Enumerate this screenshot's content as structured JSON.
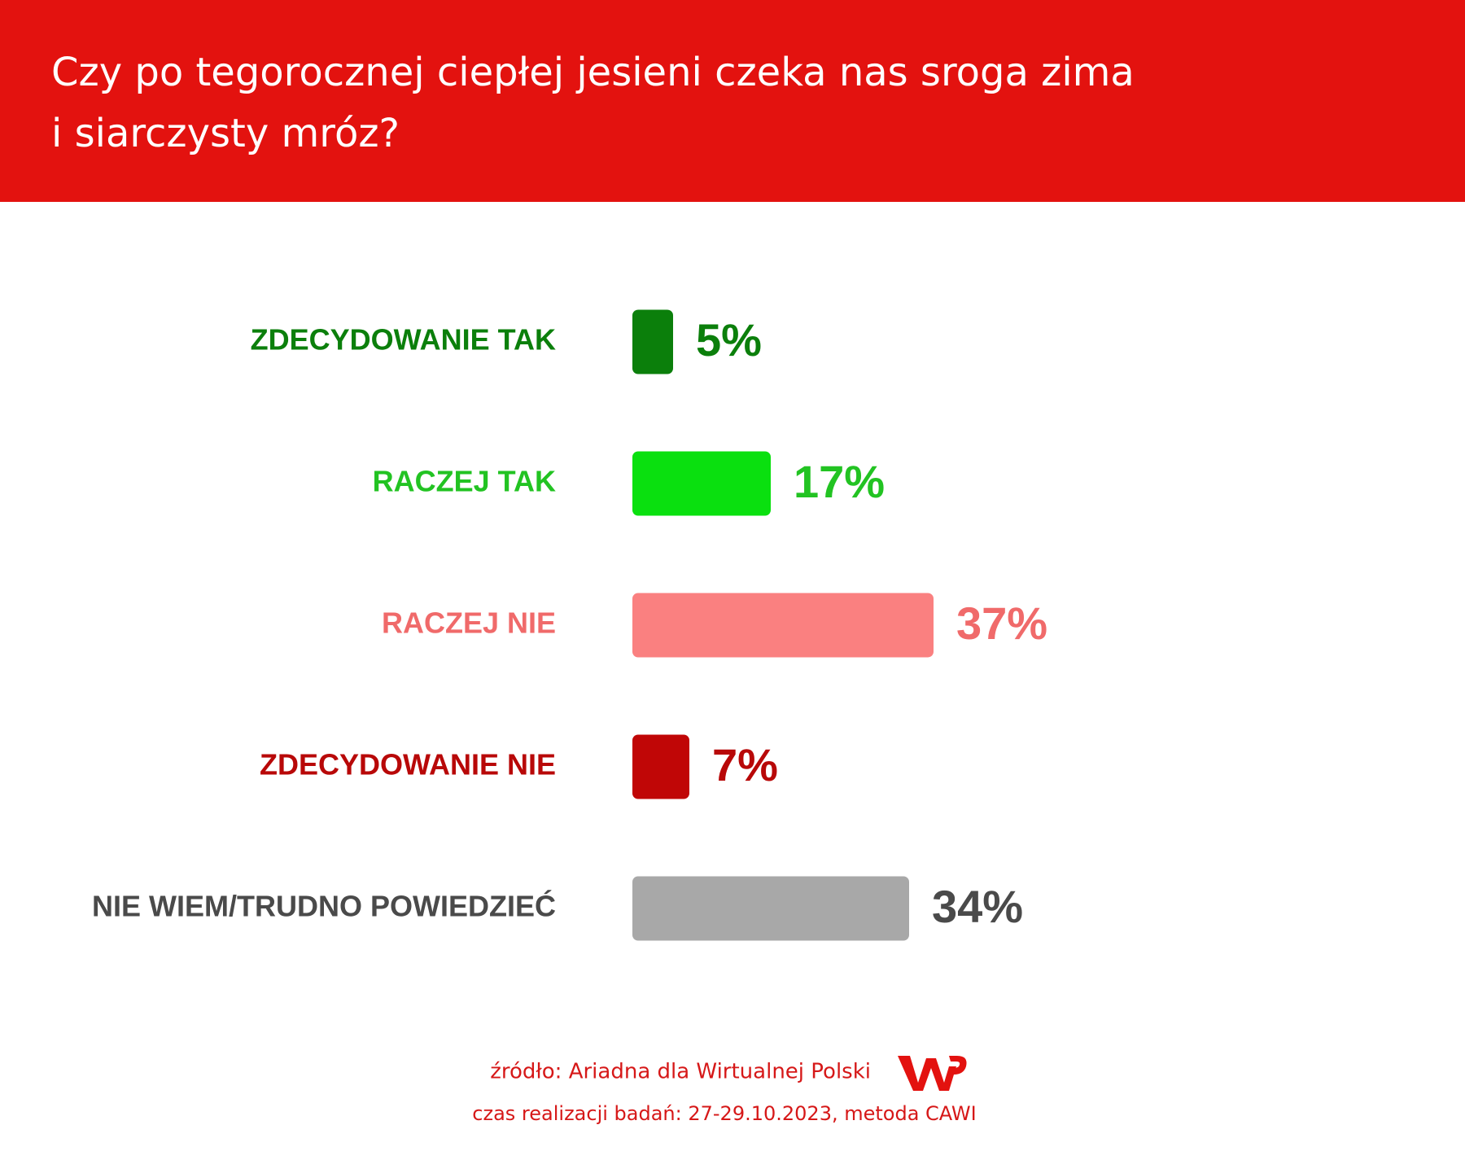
{
  "chart_data": {
    "type": "hbar",
    "title": "Czy po tegorocznej ciepłej jesieni czeka nas sroga zima\ni siarczysty mróz?",
    "categories": [
      "ZDECYDOWANIE TAK",
      "RACZEJ TAK",
      "RACZEJ NIE",
      "ZDECYDOWANIE NIE",
      "NIE WIEM/TRUDNO POWIEDZIEĆ"
    ],
    "values": [
      5,
      17,
      37,
      7,
      34
    ],
    "value_labels": [
      "5%",
      "17%",
      "37%",
      "7%",
      "34%"
    ],
    "colors": [
      "#0b7f0b",
      "#0ae00f",
      "#fa8080",
      "#c00606",
      "#a8a8a8"
    ],
    "text_colors": [
      "#0b7f0b",
      "#22c322",
      "#f06a6a",
      "#b80808",
      "#4a4a4a"
    ],
    "source": "źródło: Ariadna dla Wirtualnej Polski",
    "note": "czas realizacji badań: 27-29.10.2023, metoda CAWI"
  }
}
